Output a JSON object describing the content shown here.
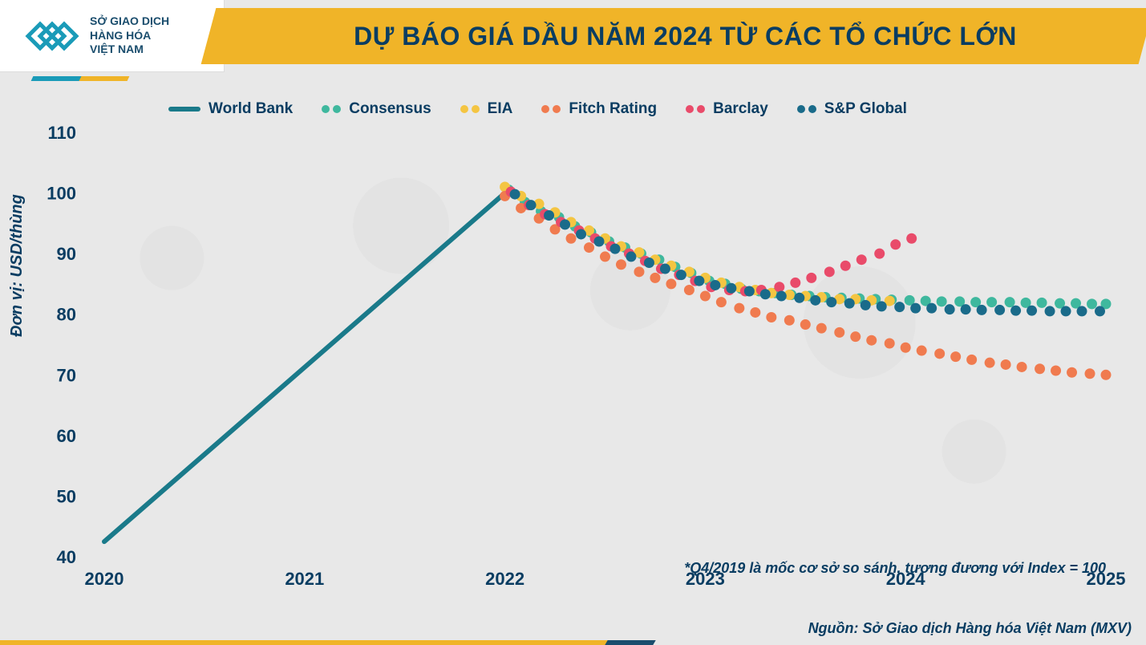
{
  "logo": {
    "line1": "SỞ GIAO DỊCH",
    "line2": "HÀNG HÓA",
    "line3": "VIỆT NAM",
    "mark_color": "#1a9bb8"
  },
  "title": "DỰ BÁO GIÁ DẦU NĂM 2024 TỪ CÁC TỔ CHỨC LỚN",
  "title_color": "#0a3d62",
  "banner_bg": "#f0b428",
  "y_axis_label": "Đơn vị: USD/thùng",
  "note": "*Q4/2019 là mốc cơ sở so sánh, tương đương với Index = 100",
  "source": "Nguồn: Sở Giao dịch Hàng hóa Việt Nam (MXV)",
  "chart": {
    "type": "line+scatter",
    "background_color": "#e8e8e8",
    "text_color": "#0a3d62",
    "ylim": [
      40,
      110
    ],
    "ytick_step": 10,
    "yticks": [
      40,
      50,
      60,
      70,
      80,
      90,
      100,
      110
    ],
    "xlim": [
      2020,
      2025
    ],
    "xticks": [
      2020,
      2021,
      2022,
      2023,
      2024,
      2025
    ],
    "xtick_labels": [
      "2020",
      "2021",
      "2022",
      "2023",
      "2024",
      "2025"
    ],
    "ytick_fontsize": 22,
    "xtick_fontsize": 22,
    "label_fontsize": 20,
    "title_fontsize": 32,
    "legend_fontsize": 19,
    "dot_radius": 6.5,
    "line_width": 6,
    "series": [
      {
        "name": "World Bank",
        "type": "line",
        "color": "#1a7a8a",
        "data": [
          [
            2020.0,
            42.5
          ],
          [
            2022.0,
            100.0
          ]
        ]
      },
      {
        "name": "Consensus",
        "type": "dots",
        "color": "#3fb89e",
        "data": [
          [
            2022.02,
            100.5
          ],
          [
            2022.1,
            98.5
          ],
          [
            2022.18,
            97.0
          ],
          [
            2022.27,
            96.0
          ],
          [
            2022.35,
            94.5
          ],
          [
            2022.43,
            93.5
          ],
          [
            2022.52,
            92.0
          ],
          [
            2022.6,
            91.0
          ],
          [
            2022.68,
            90.0
          ],
          [
            2022.77,
            89.0
          ],
          [
            2022.85,
            87.8
          ],
          [
            2022.93,
            86.8
          ],
          [
            2023.02,
            85.5
          ],
          [
            2023.1,
            85.0
          ],
          [
            2023.18,
            84.2
          ],
          [
            2023.27,
            83.8
          ],
          [
            2023.35,
            83.5
          ],
          [
            2023.43,
            83.2
          ],
          [
            2023.52,
            83.0
          ],
          [
            2023.6,
            82.8
          ],
          [
            2023.68,
            82.7
          ],
          [
            2023.77,
            82.6
          ],
          [
            2023.85,
            82.5
          ],
          [
            2023.93,
            82.4
          ],
          [
            2024.02,
            82.3
          ],
          [
            2024.1,
            82.2
          ],
          [
            2024.18,
            82.1
          ],
          [
            2024.27,
            82.1
          ],
          [
            2024.35,
            82.0
          ],
          [
            2024.43,
            82.0
          ],
          [
            2024.52,
            82.0
          ],
          [
            2024.6,
            81.9
          ],
          [
            2024.68,
            81.9
          ],
          [
            2024.77,
            81.8
          ],
          [
            2024.85,
            81.8
          ],
          [
            2024.93,
            81.7
          ],
          [
            2025.0,
            81.7
          ]
        ]
      },
      {
        "name": "EIA",
        "type": "dots",
        "color": "#f4c542",
        "data": [
          [
            2022.0,
            101.0
          ],
          [
            2022.08,
            99.5
          ],
          [
            2022.17,
            98.2
          ],
          [
            2022.25,
            96.8
          ],
          [
            2022.33,
            95.2
          ],
          [
            2022.42,
            93.8
          ],
          [
            2022.5,
            92.5
          ],
          [
            2022.58,
            91.2
          ],
          [
            2022.67,
            90.2
          ],
          [
            2022.75,
            89.0
          ],
          [
            2022.83,
            88.0
          ],
          [
            2022.92,
            87.0
          ],
          [
            2023.0,
            86.0
          ],
          [
            2023.08,
            85.2
          ],
          [
            2023.17,
            84.5
          ],
          [
            2023.25,
            84.0
          ],
          [
            2023.33,
            83.5
          ],
          [
            2023.42,
            83.2
          ],
          [
            2023.5,
            83.0
          ],
          [
            2023.58,
            82.8
          ],
          [
            2023.67,
            82.5
          ],
          [
            2023.75,
            82.5
          ],
          [
            2023.83,
            82.3
          ],
          [
            2023.92,
            82.2
          ]
        ]
      },
      {
        "name": "Fitch Rating",
        "type": "dots",
        "color": "#f07b4f",
        "data": [
          [
            2022.0,
            99.5
          ],
          [
            2022.08,
            97.5
          ],
          [
            2022.17,
            95.8
          ],
          [
            2022.25,
            94.0
          ],
          [
            2022.33,
            92.5
          ],
          [
            2022.42,
            91.0
          ],
          [
            2022.5,
            89.5
          ],
          [
            2022.58,
            88.2
          ],
          [
            2022.67,
            87.0
          ],
          [
            2022.75,
            86.0
          ],
          [
            2022.83,
            85.0
          ],
          [
            2022.92,
            84.0
          ],
          [
            2023.0,
            83.0
          ],
          [
            2023.08,
            82.0
          ],
          [
            2023.17,
            81.0
          ],
          [
            2023.25,
            80.3
          ],
          [
            2023.33,
            79.5
          ],
          [
            2023.42,
            79.0
          ],
          [
            2023.5,
            78.3
          ],
          [
            2023.58,
            77.7
          ],
          [
            2023.67,
            77.0
          ],
          [
            2023.75,
            76.3
          ],
          [
            2023.83,
            75.7
          ],
          [
            2023.92,
            75.2
          ],
          [
            2024.0,
            74.5
          ],
          [
            2024.08,
            74.0
          ],
          [
            2024.17,
            73.5
          ],
          [
            2024.25,
            73.0
          ],
          [
            2024.33,
            72.5
          ],
          [
            2024.42,
            72.0
          ],
          [
            2024.5,
            71.7
          ],
          [
            2024.58,
            71.3
          ],
          [
            2024.67,
            71.0
          ],
          [
            2024.75,
            70.7
          ],
          [
            2024.83,
            70.4
          ],
          [
            2024.92,
            70.2
          ],
          [
            2025.0,
            70.0
          ]
        ]
      },
      {
        "name": "Barclay",
        "type": "dots",
        "color": "#e94b6a",
        "data": [
          [
            2022.03,
            100.2
          ],
          [
            2022.12,
            98.0
          ],
          [
            2022.2,
            96.5
          ],
          [
            2022.28,
            95.2
          ],
          [
            2022.37,
            93.8
          ],
          [
            2022.45,
            92.5
          ],
          [
            2022.53,
            91.2
          ],
          [
            2022.62,
            90.0
          ],
          [
            2022.7,
            88.8
          ],
          [
            2022.78,
            87.5
          ],
          [
            2022.87,
            86.5
          ],
          [
            2022.95,
            85.5
          ],
          [
            2023.03,
            84.5
          ],
          [
            2023.12,
            84.0
          ],
          [
            2023.2,
            83.8
          ],
          [
            2023.28,
            84.0
          ],
          [
            2023.37,
            84.5
          ],
          [
            2023.45,
            85.2
          ],
          [
            2023.53,
            86.0
          ],
          [
            2023.62,
            87.0
          ],
          [
            2023.7,
            88.0
          ],
          [
            2023.78,
            89.0
          ],
          [
            2023.87,
            90.0
          ],
          [
            2023.95,
            91.5
          ],
          [
            2024.03,
            92.5
          ]
        ]
      },
      {
        "name": "S&P Global",
        "type": "dots",
        "color": "#1a6b8a",
        "data": [
          [
            2022.05,
            99.8
          ],
          [
            2022.13,
            98.0
          ],
          [
            2022.22,
            96.3
          ],
          [
            2022.3,
            94.8
          ],
          [
            2022.38,
            93.2
          ],
          [
            2022.47,
            92.0
          ],
          [
            2022.55,
            90.8
          ],
          [
            2022.63,
            89.5
          ],
          [
            2022.72,
            88.5
          ],
          [
            2022.8,
            87.5
          ],
          [
            2022.88,
            86.5
          ],
          [
            2022.97,
            85.5
          ],
          [
            2023.05,
            84.8
          ],
          [
            2023.13,
            84.3
          ],
          [
            2023.22,
            83.8
          ],
          [
            2023.3,
            83.3
          ],
          [
            2023.38,
            83.0
          ],
          [
            2023.47,
            82.7
          ],
          [
            2023.55,
            82.3
          ],
          [
            2023.63,
            82.0
          ],
          [
            2023.72,
            81.8
          ],
          [
            2023.8,
            81.5
          ],
          [
            2023.88,
            81.3
          ],
          [
            2023.97,
            81.2
          ],
          [
            2024.05,
            81.0
          ],
          [
            2024.13,
            81.0
          ],
          [
            2024.22,
            80.8
          ],
          [
            2024.3,
            80.8
          ],
          [
            2024.38,
            80.7
          ],
          [
            2024.47,
            80.7
          ],
          [
            2024.55,
            80.6
          ],
          [
            2024.63,
            80.6
          ],
          [
            2024.72,
            80.5
          ],
          [
            2024.8,
            80.5
          ],
          [
            2024.88,
            80.5
          ],
          [
            2024.97,
            80.5
          ]
        ]
      }
    ]
  }
}
